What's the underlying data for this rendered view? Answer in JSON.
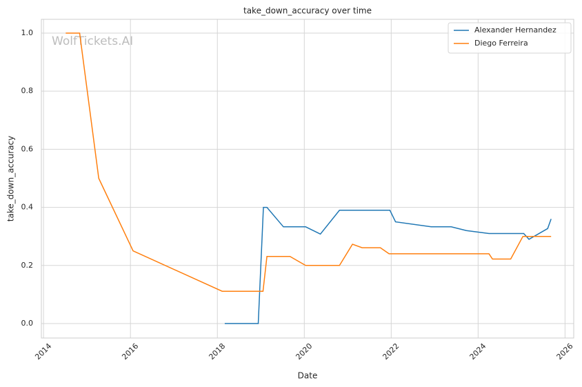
{
  "chart_data": {
    "type": "line",
    "title": "take_down_accuracy over time",
    "xlabel": "Date",
    "ylabel": "take_down_accuracy",
    "watermark": "WolfTickets.AI",
    "xlim": [
      2013.95,
      2026.2
    ],
    "ylim": [
      -0.05,
      1.0475
    ],
    "xticks": [
      2014,
      2016,
      2018,
      2020,
      2022,
      2024,
      2026
    ],
    "yticks": [
      {
        "value": 0,
        "label": "0.0"
      },
      0.2,
      0.4,
      0.6,
      0.8,
      {
        "value": 1,
        "label": "1.0"
      }
    ],
    "grid": true,
    "legend": "upper right",
    "series": [
      {
        "name": "Alexander Hernandez",
        "color": "#1f77b4",
        "x": [
          2018.17,
          2018.94,
          2019.06,
          2019.14,
          2019.52,
          2020.03,
          2020.37,
          2020.81,
          2021.97,
          2022.1,
          2022.92,
          2023.38,
          2023.73,
          2024.25,
          2025.05,
          2025.17,
          2025.6,
          2025.68
        ],
        "values": [
          0,
          0,
          0.4,
          0.4,
          0.333,
          0.333,
          0.308,
          0.39,
          0.39,
          0.35,
          0.333,
          0.333,
          0.32,
          0.31,
          0.31,
          0.29,
          0.327,
          0.36
        ]
      },
      {
        "name": "Diego Ferreira",
        "color": "#ff7f0e",
        "x": [
          2014.51,
          2014.83,
          2015.27,
          2016.06,
          2018.11,
          2019.05,
          2019.14,
          2019.67,
          2020.03,
          2020.81,
          2021.11,
          2021.33,
          2021.75,
          2021.95,
          2024.25,
          2024.33,
          2024.75,
          2025.03,
          2025.68
        ],
        "values": [
          1,
          1,
          0.5,
          0.25,
          0.111,
          0.111,
          0.231,
          0.231,
          0.2,
          0.2,
          0.273,
          0.261,
          0.261,
          0.24,
          0.24,
          0.222,
          0.222,
          0.3,
          0.3
        ]
      }
    ]
  }
}
